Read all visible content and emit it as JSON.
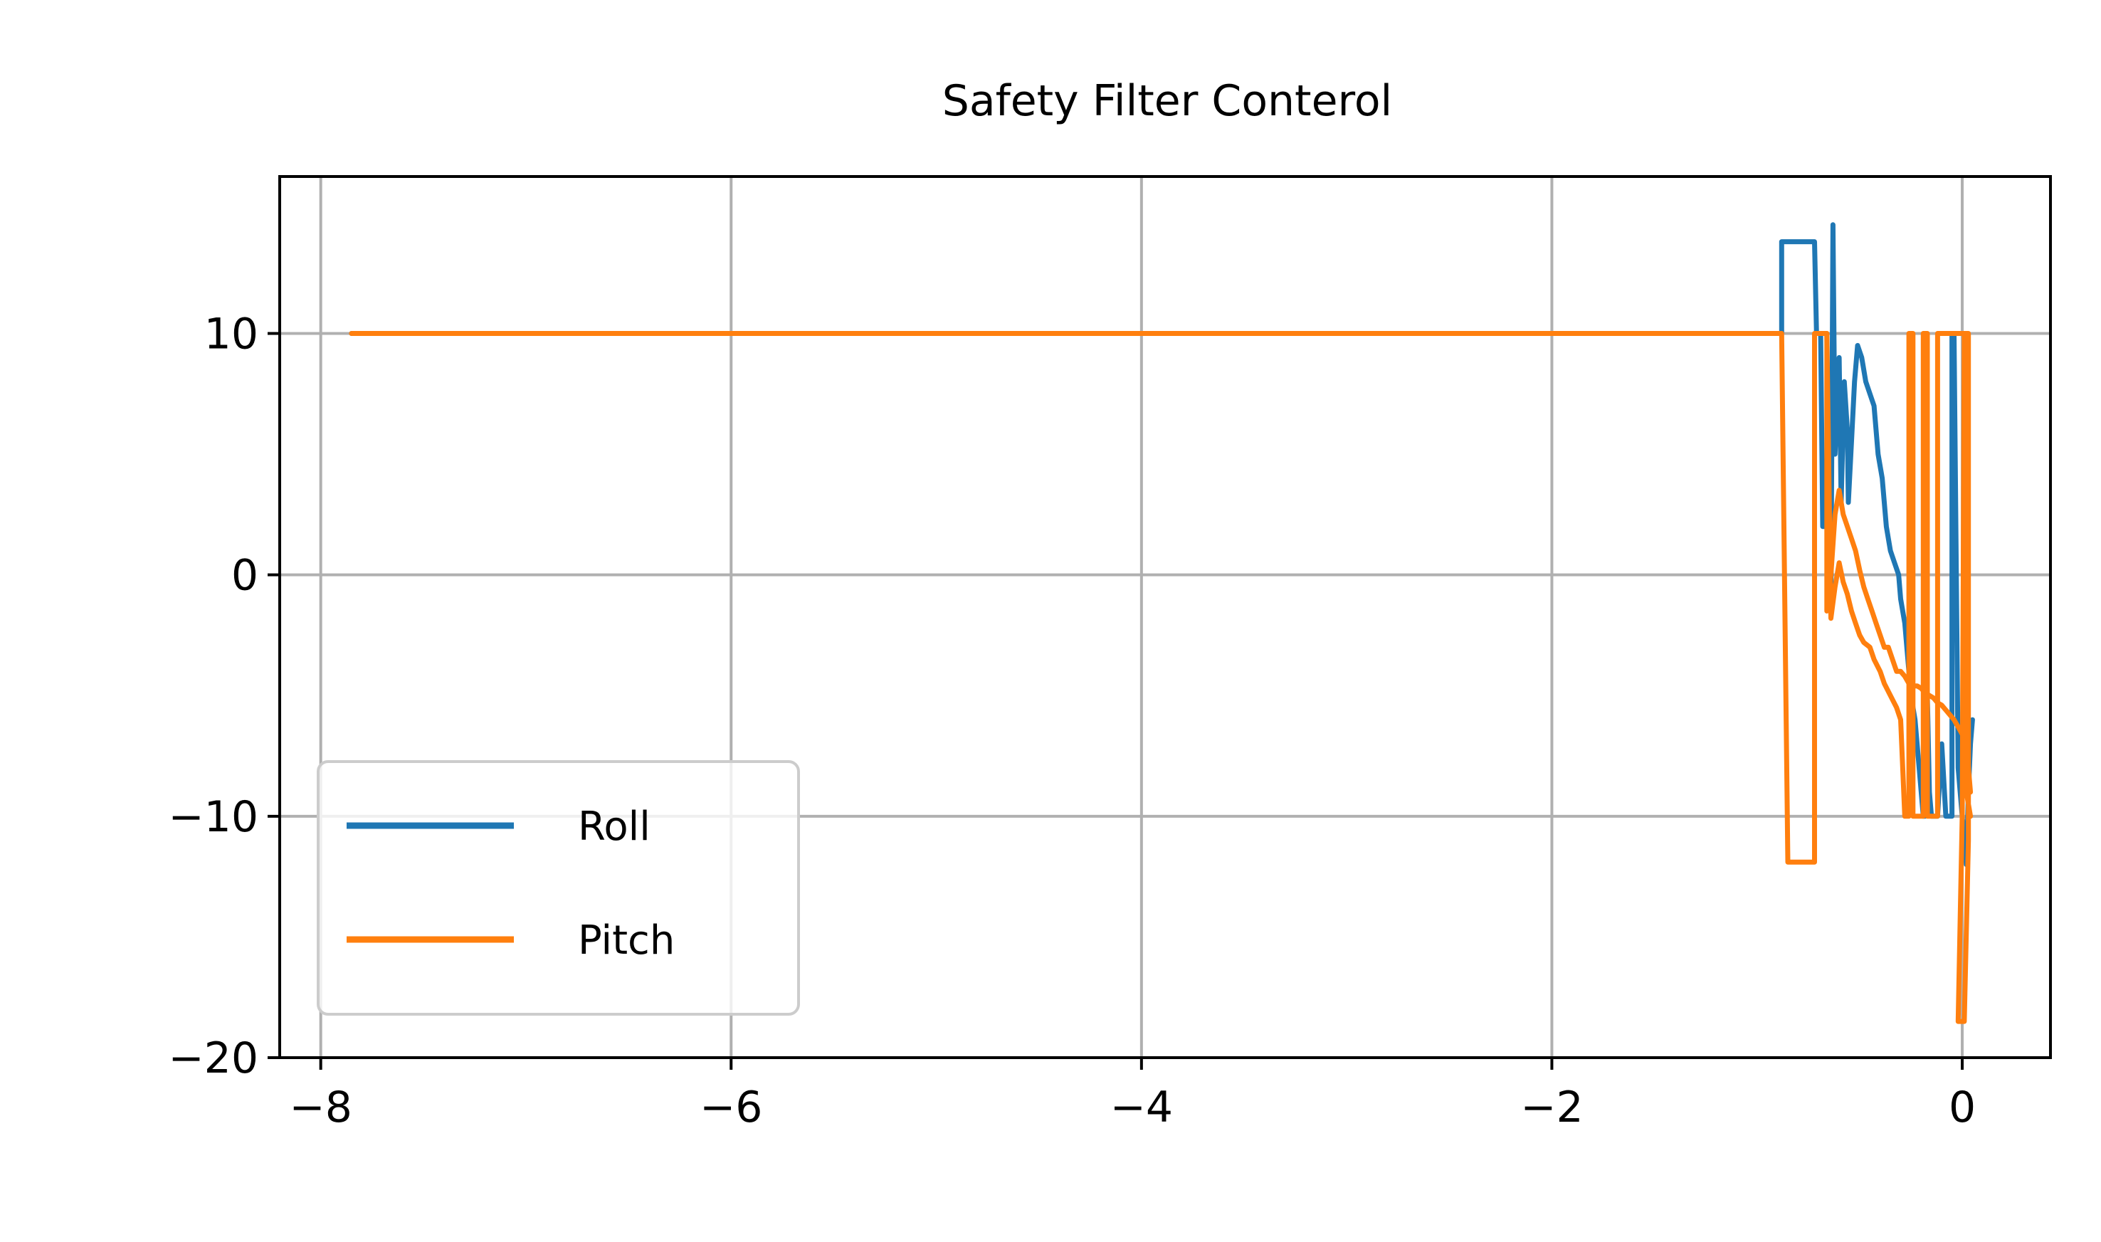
{
  "chart_data": {
    "type": "line",
    "title": "Safety Filter Conterol",
    "xlabel": "",
    "ylabel": "",
    "xlim": [
      -8.2,
      0.43
    ],
    "ylim": [
      -20,
      16.5
    ],
    "xticks": [
      -8,
      -6,
      -4,
      -2,
      0
    ],
    "yticks": [
      -20,
      -10,
      0,
      10
    ],
    "xtick_labels": [
      "−8",
      "−6",
      "−4",
      "−2",
      "0"
    ],
    "ytick_labels": [
      "−20",
      "−10",
      "0",
      "10"
    ],
    "grid": true,
    "legend_position": "lower-left",
    "series": [
      {
        "name": "Roll",
        "color": "#1f77b4",
        "points": [
          [
            -7.85,
            10
          ],
          [
            -0.88,
            10
          ],
          [
            -0.88,
            13.8
          ],
          [
            -0.81,
            13.8
          ],
          [
            -0.81,
            13.8
          ],
          [
            -0.74,
            13.8
          ],
          [
            -0.72,
            13.8
          ],
          [
            -0.71,
            10
          ],
          [
            -0.69,
            10
          ],
          [
            -0.68,
            2
          ],
          [
            -0.645,
            2
          ],
          [
            -0.64,
            -1.5
          ],
          [
            -0.63,
            14.5
          ],
          [
            -0.62,
            5
          ],
          [
            -0.6,
            9
          ],
          [
            -0.59,
            3
          ],
          [
            -0.575,
            8
          ],
          [
            -0.56,
            6
          ],
          [
            -0.555,
            3
          ],
          [
            -0.54,
            5.5
          ],
          [
            -0.525,
            8
          ],
          [
            -0.51,
            9.5
          ],
          [
            -0.49,
            9
          ],
          [
            -0.47,
            8
          ],
          [
            -0.45,
            7.5
          ],
          [
            -0.43,
            7
          ],
          [
            -0.41,
            5
          ],
          [
            -0.39,
            4
          ],
          [
            -0.37,
            2
          ],
          [
            -0.35,
            1
          ],
          [
            -0.33,
            0.5
          ],
          [
            -0.31,
            0
          ],
          [
            -0.3,
            -1
          ],
          [
            -0.28,
            -2
          ],
          [
            -0.27,
            -3
          ],
          [
            -0.26,
            -4
          ],
          [
            -0.25,
            -5
          ],
          [
            -0.23,
            -6
          ],
          [
            -0.22,
            -7
          ],
          [
            -0.21,
            -8
          ],
          [
            -0.2,
            -9
          ],
          [
            -0.19,
            -10
          ],
          [
            -0.18,
            -10
          ],
          [
            -0.17,
            -5
          ],
          [
            -0.16,
            -9
          ],
          [
            -0.15,
            -10
          ],
          [
            -0.12,
            -10
          ],
          [
            -0.1,
            -7
          ],
          [
            -0.08,
            -10
          ],
          [
            -0.05,
            -10
          ],
          [
            -0.05,
            10
          ],
          [
            -0.04,
            10
          ],
          [
            -0.02,
            -8
          ],
          [
            0.0,
            -10
          ],
          [
            0.02,
            -12
          ],
          [
            0.03,
            -9
          ],
          [
            0.04,
            -7
          ],
          [
            0.05,
            -6
          ]
        ]
      },
      {
        "name": "Pitch",
        "color": "#ff7f0e",
        "points": [
          [
            -7.85,
            10
          ],
          [
            -0.88,
            10
          ],
          [
            -0.85,
            -11.9
          ],
          [
            -0.74,
            -11.9
          ],
          [
            -0.72,
            -11.9
          ],
          [
            -0.72,
            10
          ],
          [
            -0.66,
            10
          ],
          [
            -0.66,
            -1.5
          ],
          [
            -0.64,
            0
          ],
          [
            -0.62,
            2.5
          ],
          [
            -0.6,
            3.5
          ],
          [
            -0.58,
            2.5
          ],
          [
            -0.56,
            2
          ],
          [
            -0.54,
            1.5
          ],
          [
            -0.52,
            1
          ],
          [
            -0.5,
            0.2
          ],
          [
            -0.48,
            -0.5
          ],
          [
            -0.46,
            -1
          ],
          [
            -0.44,
            -1.5
          ],
          [
            -0.42,
            -2
          ],
          [
            -0.4,
            -2.5
          ],
          [
            -0.38,
            -3
          ],
          [
            -0.36,
            -3
          ],
          [
            -0.34,
            -3.5
          ],
          [
            -0.32,
            -4
          ],
          [
            -0.3,
            -4
          ],
          [
            -0.28,
            -4.2
          ],
          [
            -0.26,
            -4.5
          ],
          [
            -0.24,
            -4.6
          ],
          [
            -0.22,
            -4.6
          ],
          [
            -0.2,
            -4.7
          ],
          [
            -0.18,
            -4.9
          ],
          [
            -0.16,
            -5
          ],
          [
            -0.14,
            -5.1
          ],
          [
            -0.12,
            -5.3
          ],
          [
            -0.1,
            -5.4
          ],
          [
            -0.08,
            -5.6
          ],
          [
            -0.06,
            -5.8
          ],
          [
            -0.04,
            -6
          ],
          [
            -0.02,
            -6.3
          ],
          [
            0.0,
            -6.6
          ],
          [
            0.02,
            -7
          ],
          [
            0.04,
            -9
          ]
        ]
      },
      {
        "name": "",
        "color": "#ff7f0e",
        "points": [
          [
            -0.66,
            10
          ],
          [
            -0.64,
            -1.8
          ],
          [
            -0.62,
            -0.5
          ],
          [
            -0.6,
            0.5
          ],
          [
            -0.58,
            -0.3
          ],
          [
            -0.56,
            -0.8
          ],
          [
            -0.54,
            -1.5
          ],
          [
            -0.52,
            -2
          ],
          [
            -0.5,
            -2.5
          ],
          [
            -0.48,
            -2.8
          ],
          [
            -0.45,
            -3
          ],
          [
            -0.43,
            -3.5
          ],
          [
            -0.4,
            -4
          ],
          [
            -0.38,
            -4.5
          ],
          [
            -0.35,
            -5
          ],
          [
            -0.32,
            -5.5
          ],
          [
            -0.3,
            -6
          ],
          [
            -0.28,
            -10
          ],
          [
            -0.26,
            -10
          ],
          [
            -0.26,
            10
          ],
          [
            -0.24,
            10
          ],
          [
            -0.24,
            -10
          ],
          [
            -0.19,
            -10
          ],
          [
            -0.19,
            10
          ],
          [
            -0.17,
            10
          ],
          [
            -0.17,
            -10
          ],
          [
            -0.12,
            -10
          ],
          [
            -0.12,
            10
          ],
          [
            0.03,
            10
          ],
          [
            0.03,
            -11
          ],
          [
            0.01,
            -18.5
          ],
          [
            -0.02,
            -18.5
          ],
          [
            0.0,
            -10
          ],
          [
            0.01,
            10
          ],
          [
            0.02,
            -9
          ],
          [
            0.04,
            -10
          ]
        ]
      }
    ]
  }
}
